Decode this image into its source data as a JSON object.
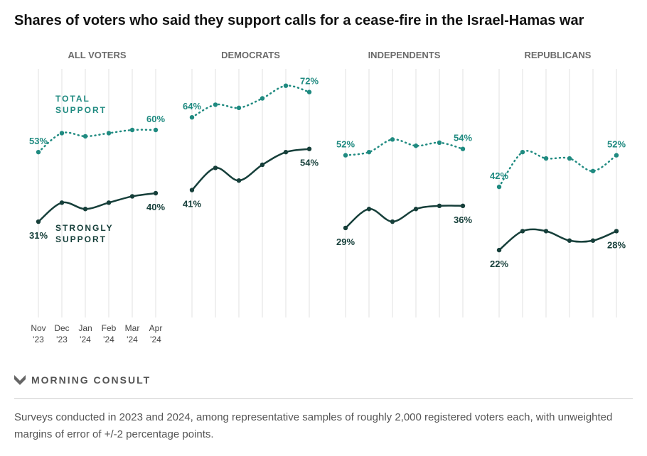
{
  "chart_data": {
    "type": "line",
    "title": "Shares of voters who said they support calls for a cease-fire in the Israel-Hamas war",
    "x": [
      "Nov '23",
      "Dec '23",
      "Jan '24",
      "Feb '24",
      "Mar '24",
      "Apr '24"
    ],
    "x_top": [
      "Nov",
      "Dec",
      "Jan",
      "Feb",
      "Mar",
      "Apr"
    ],
    "x_bottom": [
      "'23",
      "'23",
      "'24",
      "'24",
      "'24",
      "'24"
    ],
    "ylim": [
      0,
      80
    ],
    "grid": "vertical",
    "series_labels": {
      "total": "TOTAL SUPPORT",
      "strong": "STRONGLY SUPPORT"
    },
    "panels": [
      {
        "name": "ALL VOTERS",
        "total": [
          53,
          59,
          58,
          59,
          60,
          60
        ],
        "strong": [
          31,
          37,
          35,
          37,
          39,
          40
        ]
      },
      {
        "name": "DEMOCRATS",
        "total": [
          64,
          68,
          67,
          70,
          74,
          72
        ],
        "strong": [
          41,
          48,
          44,
          49,
          53,
          54
        ]
      },
      {
        "name": "INDEPENDENTS",
        "total": [
          52,
          53,
          57,
          55,
          56,
          54
        ],
        "strong": [
          29,
          35,
          31,
          35,
          36,
          36
        ]
      },
      {
        "name": "REPUBLICANS",
        "total": [
          42,
          53,
          51,
          51,
          47,
          52
        ],
        "strong": [
          22,
          28,
          28,
          25,
          25,
          28
        ]
      }
    ],
    "colors": {
      "total": "#1f8a80",
      "strong": "#163f3a",
      "grid": "#e2e2e2"
    }
  },
  "footer": {
    "brand": "MORNING CONSULT",
    "note": "Surveys conducted in 2023 and 2024, among representative samples of roughly 2,000 registered voters each, with unweighted margins of error of +/-2 percentage points."
  }
}
